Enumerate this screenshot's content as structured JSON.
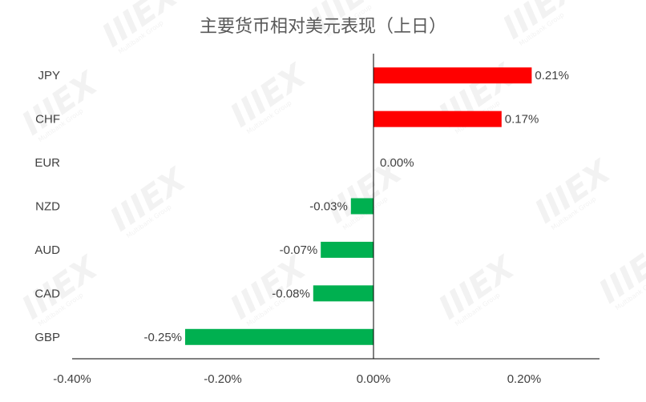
{
  "watermark": {
    "logo_text": "IIIEX",
    "sub_text": "Multibank Group"
  },
  "chart_data": {
    "type": "bar",
    "orientation": "horizontal",
    "title": "主要货币相对美元表现（上日）",
    "categories": [
      "JPY",
      "CHF",
      "EUR",
      "NZD",
      "AUD",
      "CAD",
      "GBP"
    ],
    "values": [
      0.21,
      0.17,
      0.0,
      -0.03,
      -0.07,
      -0.08,
      -0.25
    ],
    "value_labels": [
      "0.21%",
      "0.17%",
      "0.00%",
      "-0.03%",
      "-0.07%",
      "-0.08%",
      "-0.25%"
    ],
    "xlim": [
      -0.4,
      0.3
    ],
    "xticks": [
      -0.4,
      -0.2,
      0.0,
      0.2
    ],
    "xtick_labels": [
      "-0.40%",
      "-0.20%",
      "0.00%",
      "0.20%"
    ],
    "grid": false,
    "legend": "none",
    "colors": {
      "positive": "#ff0000",
      "negative": "#00b050",
      "axis": "#000000",
      "text": "#404040"
    }
  }
}
